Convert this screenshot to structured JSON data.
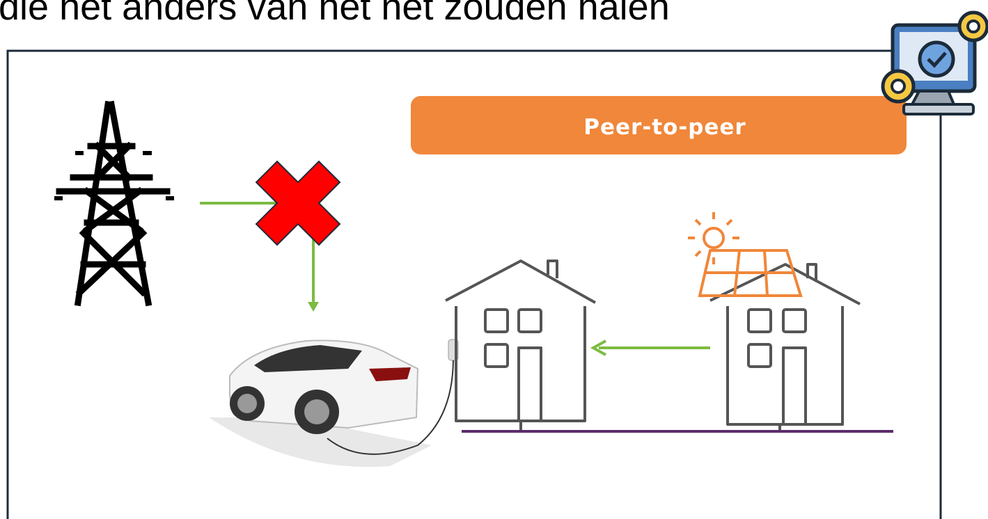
{
  "heading": "die het anders van het net zouden halen",
  "banner": "Peer-to-peer"
}
